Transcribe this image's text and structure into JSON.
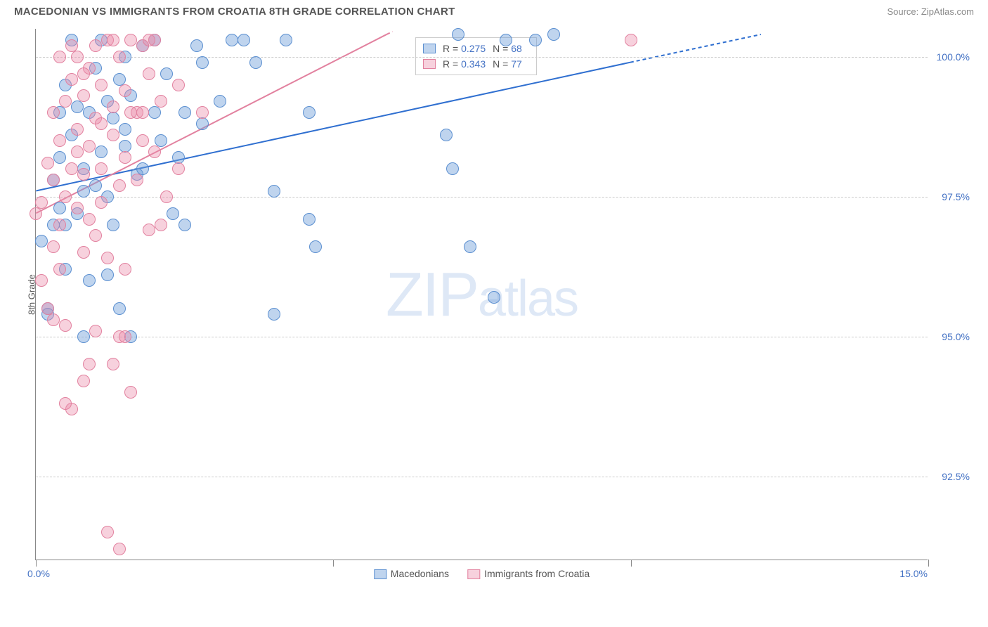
{
  "header": {
    "title": "MACEDONIAN VS IMMIGRANTS FROM CROATIA 8TH GRADE CORRELATION CHART",
    "source": "Source: ZipAtlas.com"
  },
  "watermark": {
    "big": "ZIP",
    "small": "atlas"
  },
  "chart": {
    "type": "scatter",
    "background_color": "#ffffff",
    "grid_color": "#cccccc",
    "axis_color": "#888888",
    "y_label": "8th Grade",
    "y_label_color": "#555555",
    "y_label_fontsize": 13,
    "xlim": [
      0.0,
      15.0
    ],
    "ylim": [
      91.0,
      100.5
    ],
    "x_ticks": [
      0.0,
      5.0,
      10.0,
      15.0
    ],
    "x_tick_labels": {
      "left": "0.0%",
      "right": "15.0%"
    },
    "y_ticks": [
      92.5,
      95.0,
      97.5,
      100.0
    ],
    "y_tick_labels": [
      "92.5%",
      "95.0%",
      "97.5%",
      "100.0%"
    ],
    "tick_label_color": "#4472c4",
    "tick_label_fontsize": 14,
    "dot_radius": 9,
    "dot_border_width": 1.2,
    "series": [
      {
        "name": "Macedonians",
        "fill_color": "rgba(114,159,218,0.45)",
        "stroke_color": "#5b8fd0",
        "trend_color": "#2f6fd0",
        "trend_width": 2,
        "trend_p1": [
          0.0,
          97.6
        ],
        "trend_p2": [
          10.0,
          99.9
        ],
        "trend_dashed_p1": [
          10.0,
          99.9
        ],
        "trend_dashed_p2": [
          12.2,
          100.4
        ],
        "r_value": "0.275",
        "n_value": "68",
        "points": [
          [
            0.1,
            96.7
          ],
          [
            0.2,
            95.5
          ],
          [
            0.2,
            95.4
          ],
          [
            0.3,
            97.8
          ],
          [
            0.3,
            97.0
          ],
          [
            0.4,
            98.2
          ],
          [
            0.4,
            97.3
          ],
          [
            0.5,
            99.5
          ],
          [
            0.5,
            96.2
          ],
          [
            0.5,
            97.0
          ],
          [
            0.6,
            98.6
          ],
          [
            0.6,
            100.3
          ],
          [
            0.7,
            99.1
          ],
          [
            0.7,
            97.2
          ],
          [
            0.8,
            97.6
          ],
          [
            0.8,
            95.0
          ],
          [
            0.8,
            98.0
          ],
          [
            0.9,
            99.0
          ],
          [
            0.9,
            96.0
          ],
          [
            1.0,
            97.7
          ],
          [
            1.0,
            99.8
          ],
          [
            1.1,
            100.3
          ],
          [
            1.1,
            98.3
          ],
          [
            1.2,
            99.2
          ],
          [
            1.2,
            97.5
          ],
          [
            1.2,
            96.1
          ],
          [
            1.3,
            98.9
          ],
          [
            1.3,
            97.0
          ],
          [
            1.4,
            99.6
          ],
          [
            1.4,
            95.5
          ],
          [
            1.5,
            100.0
          ],
          [
            1.5,
            98.4
          ],
          [
            1.5,
            98.7
          ],
          [
            1.6,
            99.3
          ],
          [
            1.6,
            95.0
          ],
          [
            1.7,
            97.9
          ],
          [
            1.8,
            100.2
          ],
          [
            1.8,
            98.0
          ],
          [
            2.0,
            99.0
          ],
          [
            2.0,
            100.3
          ],
          [
            2.1,
            98.5
          ],
          [
            2.2,
            99.7
          ],
          [
            2.3,
            97.2
          ],
          [
            2.4,
            98.2
          ],
          [
            2.5,
            99.0
          ],
          [
            2.5,
            97.0
          ],
          [
            2.7,
            100.2
          ],
          [
            2.8,
            98.8
          ],
          [
            2.8,
            99.9
          ],
          [
            3.1,
            99.2
          ],
          [
            3.3,
            100.3
          ],
          [
            3.5,
            100.3
          ],
          [
            3.7,
            99.9
          ],
          [
            4.0,
            97.6
          ],
          [
            4.0,
            95.4
          ],
          [
            4.2,
            100.3
          ],
          [
            4.6,
            97.1
          ],
          [
            4.7,
            96.6
          ],
          [
            4.6,
            99.0
          ],
          [
            6.9,
            98.6
          ],
          [
            7.1,
            100.4
          ],
          [
            7.3,
            96.6
          ],
          [
            7.7,
            95.7
          ],
          [
            7.9,
            100.3
          ],
          [
            8.4,
            100.3
          ],
          [
            8.7,
            100.4
          ],
          [
            7.0,
            98.0
          ],
          [
            0.4,
            99.0
          ]
        ]
      },
      {
        "name": "Immigrants from Croatia",
        "fill_color": "rgba(235,140,170,0.40)",
        "stroke_color": "#e2819f",
        "trend_color": "#e2819f",
        "trend_width": 2,
        "trend_p1": [
          0.0,
          97.2
        ],
        "trend_p2": [
          5.9,
          100.4
        ],
        "trend_dashed_p1": [
          5.9,
          100.4
        ],
        "trend_dashed_p2": [
          6.0,
          100.45
        ],
        "r_value": "0.343",
        "n_value": "77",
        "points": [
          [
            0.0,
            97.2
          ],
          [
            0.1,
            96.0
          ],
          [
            0.1,
            97.4
          ],
          [
            0.2,
            95.5
          ],
          [
            0.2,
            98.1
          ],
          [
            0.3,
            96.6
          ],
          [
            0.3,
            97.8
          ],
          [
            0.3,
            99.0
          ],
          [
            0.4,
            97.0
          ],
          [
            0.4,
            98.5
          ],
          [
            0.4,
            96.2
          ],
          [
            0.5,
            99.2
          ],
          [
            0.5,
            97.5
          ],
          [
            0.5,
            95.2
          ],
          [
            0.6,
            98.0
          ],
          [
            0.6,
            99.6
          ],
          [
            0.6,
            93.7
          ],
          [
            0.7,
            97.3
          ],
          [
            0.7,
            100.0
          ],
          [
            0.7,
            98.7
          ],
          [
            0.8,
            97.9
          ],
          [
            0.8,
            99.3
          ],
          [
            0.8,
            94.2
          ],
          [
            0.8,
            96.5
          ],
          [
            0.9,
            98.4
          ],
          [
            0.9,
            99.8
          ],
          [
            0.9,
            97.1
          ],
          [
            1.0,
            98.9
          ],
          [
            1.0,
            100.2
          ],
          [
            1.0,
            96.8
          ],
          [
            1.0,
            95.1
          ],
          [
            1.1,
            99.5
          ],
          [
            1.1,
            98.0
          ],
          [
            1.1,
            97.4
          ],
          [
            1.2,
            100.3
          ],
          [
            1.2,
            96.4
          ],
          [
            1.2,
            91.5
          ],
          [
            1.3,
            98.6
          ],
          [
            1.3,
            99.1
          ],
          [
            1.3,
            94.5
          ],
          [
            1.4,
            100.0
          ],
          [
            1.4,
            97.7
          ],
          [
            1.4,
            91.2
          ],
          [
            1.4,
            95.0
          ],
          [
            1.5,
            99.4
          ],
          [
            1.5,
            98.2
          ],
          [
            1.5,
            96.2
          ],
          [
            1.6,
            100.3
          ],
          [
            1.6,
            94.0
          ],
          [
            1.7,
            99.0
          ],
          [
            1.7,
            97.8
          ],
          [
            1.8,
            98.5
          ],
          [
            1.8,
            100.2
          ],
          [
            1.8,
            99.0
          ],
          [
            1.9,
            99.7
          ],
          [
            1.9,
            96.9
          ],
          [
            2.0,
            98.3
          ],
          [
            2.0,
            100.3
          ],
          [
            2.1,
            99.2
          ],
          [
            2.2,
            97.5
          ],
          [
            2.4,
            98.0
          ],
          [
            2.4,
            99.5
          ],
          [
            2.8,
            99.0
          ],
          [
            0.9,
            94.5
          ],
          [
            0.5,
            93.8
          ],
          [
            0.3,
            95.3
          ],
          [
            0.7,
            98.3
          ],
          [
            1.1,
            98.8
          ],
          [
            1.6,
            99.0
          ],
          [
            2.1,
            97.0
          ],
          [
            1.9,
            100.3
          ],
          [
            1.3,
            100.3
          ],
          [
            0.6,
            100.2
          ],
          [
            10.0,
            100.3
          ],
          [
            1.5,
            95.0
          ],
          [
            0.8,
            99.7
          ],
          [
            0.4,
            100.0
          ]
        ]
      }
    ],
    "legend_top": {
      "r_label": "R =",
      "n_label": "N ="
    },
    "legend_bottom": {
      "labels": [
        "Macedonians",
        "Immigrants from Croatia"
      ]
    }
  }
}
